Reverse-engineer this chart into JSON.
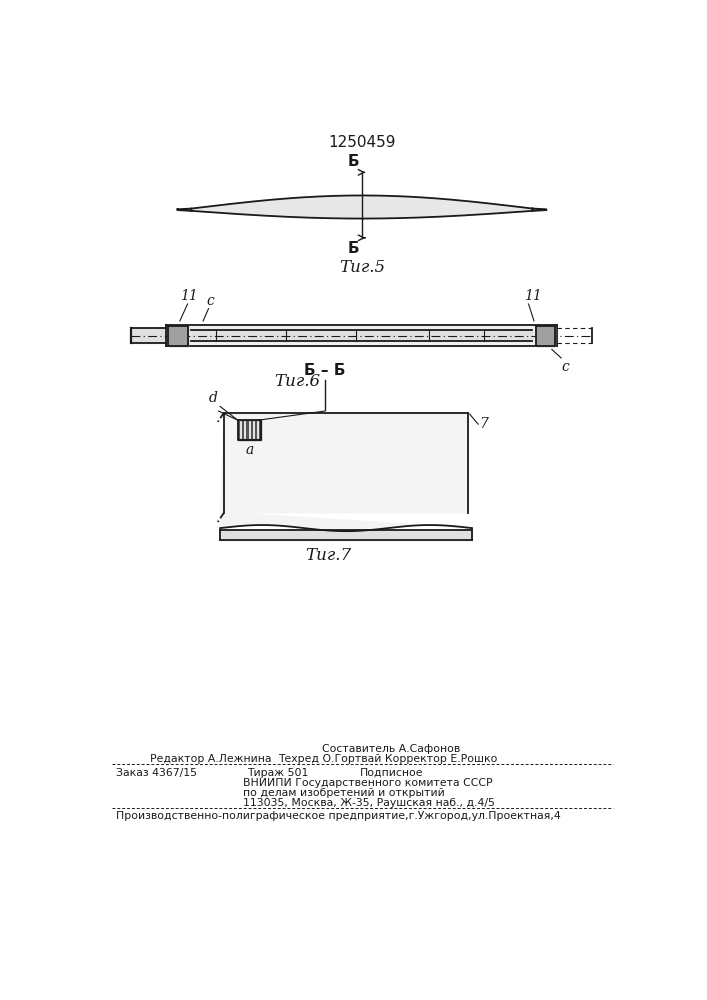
{
  "patent_number": "1250459",
  "fig5_label": "Τиг.5",
  "fig6_label": "Τиг.6",
  "fig7_label": "Τиг.7",
  "bg_color": "#ffffff",
  "line_color": "#1a1a1a",
  "footer_line1_center": "Составитель А.Сафонов",
  "footer_line1_left": "Редактор А.Лежнина",
  "footer_line2_center": "Техред О.Гортвай Корректор Е.Рошко",
  "footer_block1": "Заказ 4367/15",
  "footer_block1b": "Тираж 501",
  "footer_block1c": "Подписное",
  "footer_block2": "ВНИИПИ Государственного комитета СССР",
  "footer_block3": "по делам изобретений и открытий",
  "footer_block4": "113035, Москва, Ж-35, Раушская наб., д.4/5",
  "footer_bottom": "Производственно-полиграфическое предприятие,г.Ужгород,ул.Проектная,4"
}
